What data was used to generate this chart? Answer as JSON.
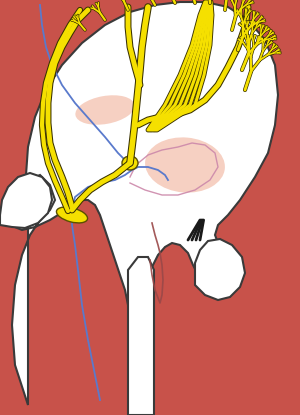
{
  "bg_color": "#c8524a",
  "heart_fill": "#ffffff",
  "heart_stroke": "#3a3a3a",
  "sa_color": "#f5e000",
  "sa_stroke": "#5a5000",
  "bundle_color": "#f5e000",
  "bundle_stroke": "#3a3200",
  "blue_color": "#5a7acc",
  "red_color": "#9a4848",
  "pink_color": "#cc88aa",
  "valve_fill": "#f5c8b8",
  "figsize": [
    3.0,
    4.15
  ],
  "dpi": 100
}
